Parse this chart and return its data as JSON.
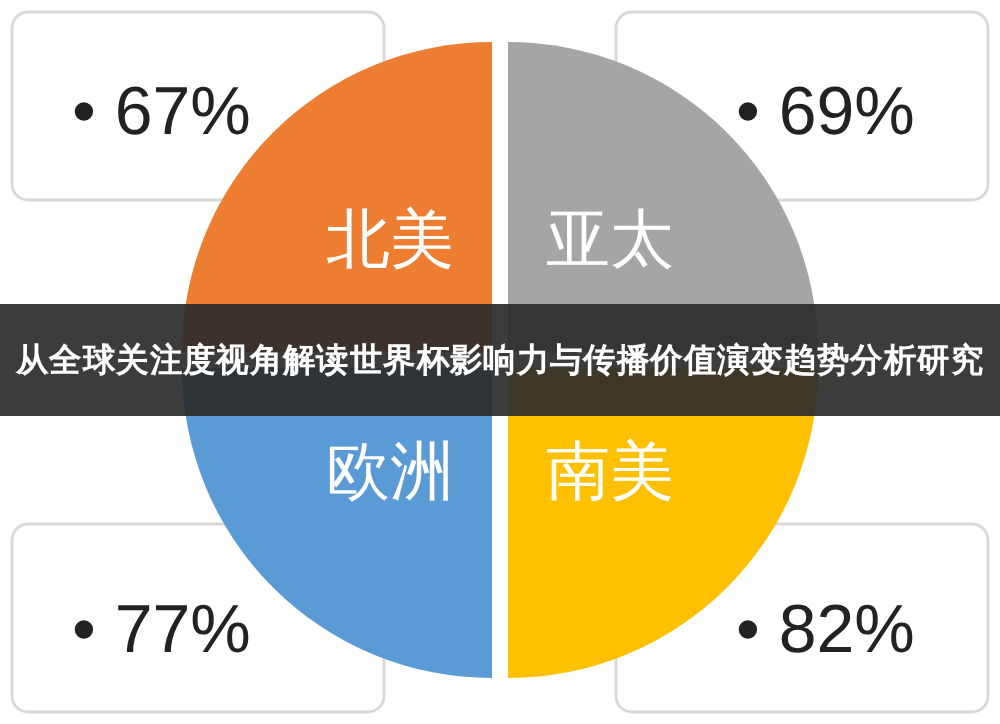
{
  "chart_data": {
    "type": "other",
    "title": "从全球关注度视角解读世界杯影响力与传播价值演变趋势分析研究",
    "categories": [
      "北美",
      "亚太",
      "欧洲",
      "南美"
    ],
    "values": [
      67,
      69,
      77,
      82
    ],
    "value_labels": [
      "• 67%",
      "• 69%",
      "• 77%",
      "• 82%"
    ],
    "colors": [
      "#ed7d31",
      "#a5a5a5",
      "#5b9bd5",
      "#ffc000"
    ]
  }
}
